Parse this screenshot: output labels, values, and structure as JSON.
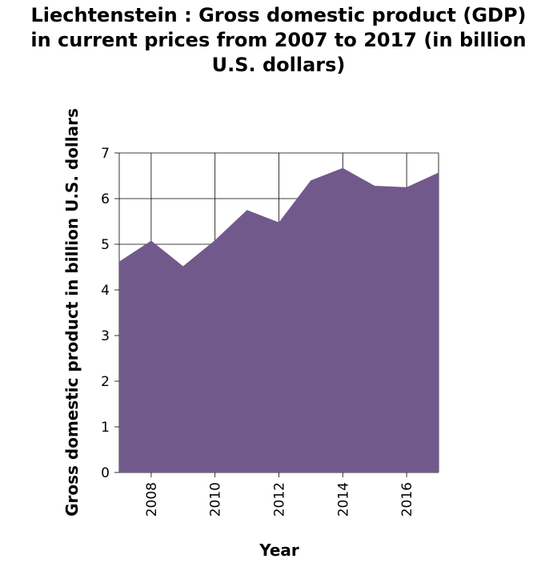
{
  "chart_data": {
    "type": "area",
    "title_lines": [
      "Liechtenstein : Gross domestic product (GDP)",
      "in current prices from 2007 to 2017 (in billion",
      "U.S. dollars)"
    ],
    "xlabel": "Year",
    "ylabel": "Gross domestic product in billion U.S. dollars",
    "x": [
      2007,
      2008,
      2009,
      2010,
      2011,
      2012,
      2013,
      2014,
      2015,
      2016,
      2017
    ],
    "series": [
      {
        "name": "GDP",
        "values": [
          4.62,
          5.08,
          4.52,
          5.09,
          5.75,
          5.48,
          6.4,
          6.67,
          6.28,
          6.25,
          6.57
        ]
      }
    ],
    "xlim": [
      2007,
      2017
    ],
    "ylim": [
      0,
      7
    ],
    "x_ticks": [
      2008,
      2010,
      2012,
      2014,
      2016
    ],
    "y_ticks": [
      0,
      1,
      2,
      3,
      4,
      5,
      6,
      7
    ],
    "x_tick_labels": [
      "2008",
      "2010",
      "2012",
      "2014",
      "2016"
    ],
    "y_tick_labels": [
      "0",
      "1",
      "2",
      "3",
      "4",
      "5",
      "6",
      "7"
    ],
    "grid": true,
    "colors": {
      "fill": "#72598c",
      "grid": "#000000"
    }
  }
}
